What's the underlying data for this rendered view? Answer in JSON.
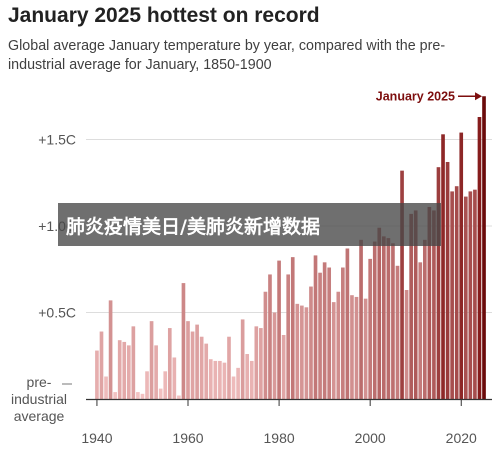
{
  "page": {
    "title": "January 2025 hottest on record",
    "subtitle": "Global average January temperature by year, compared with the pre-industrial average for January, 1850-1900",
    "overlay_text": "肺炎疫情美日/美肺炎新增数据"
  },
  "chart_data": {
    "type": "bar",
    "title": "January 2025 hottest on record",
    "subtitle": "Global average January temperature by year, compared with the pre-industrial average for January, 1850-1900",
    "xlabel": "",
    "ylabel": "",
    "y_tick_labels": [
      "+1.5C",
      "+1.0C",
      "+0.5C",
      "pre-industrial average"
    ],
    "y_ticks": [
      1.5,
      1.0,
      0.5,
      0.0
    ],
    "x_tick_labels": [
      "1940",
      "1960",
      "1980",
      "2000",
      "2020"
    ],
    "x_ticks": [
      1940,
      1960,
      1980,
      2000,
      2020
    ],
    "ylim": [
      0,
      1.8
    ],
    "grid": true,
    "annotation": {
      "text": "January 2025",
      "year": 2025
    },
    "colors": {
      "low": "#f4c4c4",
      "high": "#7d0e0e",
      "highlight": "#6b0a0a"
    },
    "categories": [
      1940,
      1941,
      1942,
      1943,
      1944,
      1945,
      1946,
      1947,
      1948,
      1949,
      1950,
      1951,
      1952,
      1953,
      1954,
      1955,
      1956,
      1957,
      1958,
      1959,
      1960,
      1961,
      1962,
      1963,
      1964,
      1965,
      1966,
      1967,
      1968,
      1969,
      1970,
      1971,
      1972,
      1973,
      1974,
      1975,
      1976,
      1977,
      1978,
      1979,
      1980,
      1981,
      1982,
      1983,
      1984,
      1985,
      1986,
      1987,
      1988,
      1989,
      1990,
      1991,
      1992,
      1993,
      1994,
      1995,
      1996,
      1997,
      1998,
      1999,
      2000,
      2001,
      2002,
      2003,
      2004,
      2005,
      2006,
      2007,
      2008,
      2009,
      2010,
      2011,
      2012,
      2013,
      2014,
      2015,
      2016,
      2017,
      2018,
      2019,
      2020,
      2021,
      2022,
      2023,
      2024,
      2025
    ],
    "values": [
      0.28,
      0.39,
      0.13,
      0.57,
      0.04,
      0.34,
      0.33,
      0.31,
      0.42,
      0.04,
      0.03,
      0.16,
      0.45,
      0.31,
      0.06,
      0.16,
      0.41,
      0.24,
      0.02,
      0.67,
      0.45,
      0.39,
      0.43,
      0.36,
      0.32,
      0.23,
      0.22,
      0.22,
      0.21,
      0.36,
      0.13,
      0.18,
      0.46,
      0.26,
      0.22,
      0.42,
      0.41,
      0.62,
      0.72,
      0.5,
      0.8,
      0.37,
      0.72,
      0.82,
      0.55,
      0.54,
      0.53,
      0.65,
      0.83,
      0.73,
      0.79,
      0.76,
      0.56,
      0.62,
      0.76,
      0.87,
      0.6,
      0.59,
      0.92,
      0.58,
      0.81,
      0.91,
      0.99,
      0.94,
      0.93,
      0.9,
      0.77,
      1.32,
      0.63,
      1.07,
      1.09,
      0.79,
      0.92,
      1.11,
      1.09,
      1.34,
      1.53,
      1.37,
      1.2,
      1.23,
      1.54,
      1.17,
      1.2,
      1.21,
      1.63,
      1.75
    ]
  }
}
